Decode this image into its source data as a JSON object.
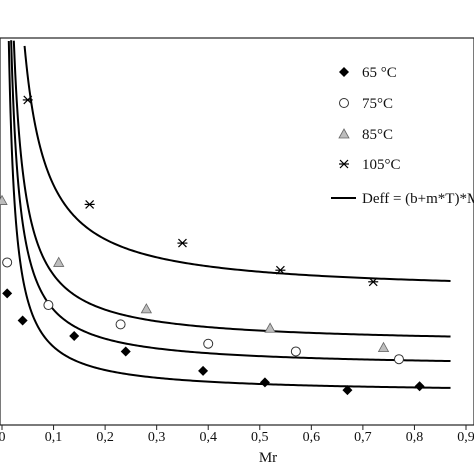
{
  "chart_data": {
    "type": "scatter",
    "xlabel": "Mr",
    "ylabel": "",
    "xlim": [
      0,
      0.9
    ],
    "x_ticks": [
      "0",
      "0,1",
      "0,2",
      "0,3",
      "0,4",
      "0,5",
      "0,6",
      "0,7",
      "0,8",
      "0,9"
    ],
    "grid": false,
    "legend_position": "right",
    "series": [
      {
        "name": "65 °C",
        "marker": "diamond",
        "color": "#000000",
        "points": [
          [
            0.01,
            0.34
          ],
          [
            0.04,
            0.27
          ],
          [
            0.14,
            0.23
          ],
          [
            0.24,
            0.19
          ],
          [
            0.39,
            0.14
          ],
          [
            0.51,
            0.11
          ],
          [
            0.67,
            0.09
          ],
          [
            0.81,
            0.1
          ]
        ]
      },
      {
        "name": "75°C",
        "marker": "circle",
        "color": "#000000",
        "points": [
          [
            0.01,
            0.42
          ],
          [
            0.09,
            0.31
          ],
          [
            0.23,
            0.26
          ],
          [
            0.4,
            0.21
          ],
          [
            0.57,
            0.19
          ],
          [
            0.77,
            0.17
          ]
        ]
      },
      {
        "name": "85°C",
        "marker": "triangle",
        "color": "#8c8c8c",
        "points": [
          [
            0.0,
            0.58
          ],
          [
            0.11,
            0.42
          ],
          [
            0.28,
            0.3
          ],
          [
            0.52,
            0.25
          ],
          [
            0.74,
            0.2
          ]
        ]
      },
      {
        "name": "105°C",
        "marker": "asterisk",
        "color": "#000000",
        "points": [
          [
            0.05,
            0.84
          ],
          [
            0.17,
            0.57
          ],
          [
            0.35,
            0.47
          ],
          [
            0.54,
            0.4
          ],
          [
            0.72,
            0.37
          ]
        ]
      },
      {
        "name": "Deff = (b+m*T)*M",
        "marker": "line",
        "color": "#000000",
        "curves": [
          {
            "a": 0.012,
            "c": 0.082
          },
          {
            "a": 0.015,
            "c": 0.148
          },
          {
            "a": 0.018,
            "c": 0.208
          },
          {
            "a": 0.028,
            "c": 0.34
          }
        ]
      }
    ]
  }
}
